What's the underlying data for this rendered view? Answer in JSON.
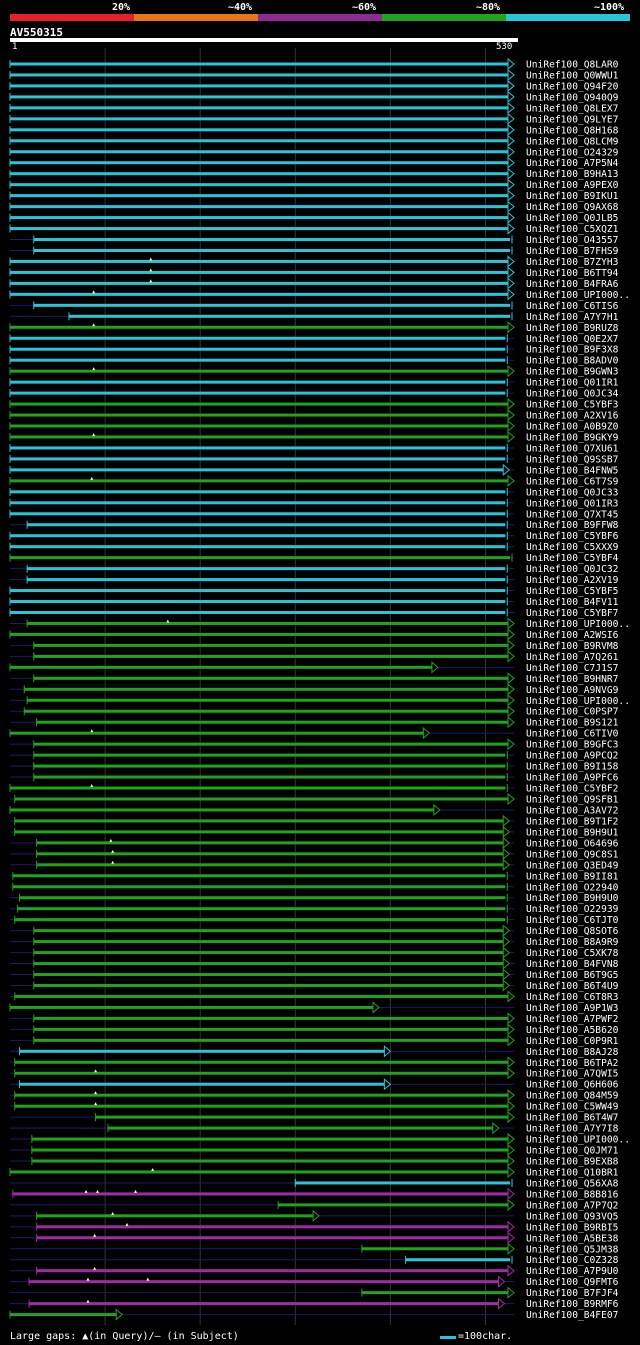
{
  "legend": [
    {
      "label": "20%",
      "color": "#e8202a"
    },
    {
      "label": "~40%",
      "color": "#e8751a"
    },
    {
      "label": "~60%",
      "color": "#8e2a91"
    },
    {
      "label": "~80%",
      "color": "#21a31e"
    },
    {
      "label": "~100%",
      "color": "#29c5d6"
    }
  ],
  "query": {
    "name": "AV550315",
    "start": "1",
    "end": "530"
  },
  "footer": {
    "text": "Large gaps: ▲(in Query)/— (in Subject)",
    "scale": "=100char."
  },
  "colors": {
    "cyan": "#29c5d6",
    "green": "#21a31e",
    "purple": "#a12aa8",
    "gap": "#1a1a6e"
  },
  "chart_data": {
    "type": "alignment-overview",
    "query_length": 530,
    "hits": [
      {
        "name": "UniRef100_Q8LAR0",
        "s": 0,
        "e": 530,
        "c": "cyan",
        "t": "a"
      },
      {
        "name": "UniRef100_Q0WWU1",
        "s": 0,
        "e": 530,
        "c": "cyan",
        "t": "a"
      },
      {
        "name": "UniRef100_Q94F20",
        "s": 0,
        "e": 530,
        "c": "cyan",
        "t": "a"
      },
      {
        "name": "UniRef100_Q940Q9",
        "s": 0,
        "e": 530,
        "c": "cyan",
        "t": "a"
      },
      {
        "name": "UniRef100_Q8LEX7",
        "s": 0,
        "e": 530,
        "c": "cyan",
        "t": "a"
      },
      {
        "name": "UniRef100_Q9LYE7",
        "s": 0,
        "e": 530,
        "c": "cyan",
        "t": "a"
      },
      {
        "name": "UniRef100_Q8H168",
        "s": 0,
        "e": 530,
        "c": "cyan",
        "t": "a"
      },
      {
        "name": "UniRef100_Q8LCM9",
        "s": 0,
        "e": 530,
        "c": "cyan",
        "t": "a"
      },
      {
        "name": "UniRef100_O24329",
        "s": 0,
        "e": 530,
        "c": "cyan",
        "t": "a"
      },
      {
        "name": "UniRef100_A7P5N4",
        "s": 0,
        "e": 530,
        "c": "cyan",
        "t": "a"
      },
      {
        "name": "UniRef100_B9HA13",
        "s": 0,
        "e": 530,
        "c": "cyan",
        "t": "a"
      },
      {
        "name": "UniRef100_A9PEX0",
        "s": 0,
        "e": 530,
        "c": "cyan",
        "t": "a"
      },
      {
        "name": "UniRef100_B9IKU1",
        "s": 0,
        "e": 530,
        "c": "cyan",
        "t": "a"
      },
      {
        "name": "UniRef100_Q9AX68",
        "s": 0,
        "e": 530,
        "c": "cyan",
        "t": "a"
      },
      {
        "name": "UniRef100_Q0JLB5",
        "s": 0,
        "e": 530,
        "c": "cyan",
        "t": "a"
      },
      {
        "name": "UniRef100_C5XQZ1",
        "s": 0,
        "e": 530,
        "c": "cyan",
        "t": "a"
      },
      {
        "name": "UniRef100_O43557",
        "s": 25,
        "e": 530,
        "c": "cyan",
        "t": "b"
      },
      {
        "name": "UniRef100_B7FHS9",
        "s": 25,
        "e": 530,
        "c": "cyan",
        "t": "b"
      },
      {
        "name": "UniRef100_B7ZYH3",
        "s": 0,
        "e": 530,
        "c": "cyan",
        "t": "a",
        "g": [
          148
        ]
      },
      {
        "name": "UniRef100_B6TT94",
        "s": 0,
        "e": 530,
        "c": "cyan",
        "t": "a",
        "g": [
          148
        ]
      },
      {
        "name": "UniRef100_B4FRA6",
        "s": 0,
        "e": 530,
        "c": "cyan",
        "t": "a",
        "g": [
          148
        ]
      },
      {
        "name": "UniRef100_UPI000..",
        "s": 0,
        "e": 530,
        "c": "cyan",
        "t": "a",
        "g": [
          88
        ]
      },
      {
        "name": "UniRef100_C6TIS6",
        "s": 25,
        "e": 530,
        "c": "cyan",
        "t": "b"
      },
      {
        "name": "UniRef100_A7Y7H1",
        "s": 62,
        "e": 530,
        "c": "cyan",
        "t": "b"
      },
      {
        "name": "UniRef100_B9RUZ8",
        "s": 0,
        "e": 530,
        "c": "green",
        "t": "a",
        "g": [
          88
        ]
      },
      {
        "name": "UniRef100_Q0E2X7",
        "s": 0,
        "e": 525,
        "c": "cyan",
        "t": "b"
      },
      {
        "name": "UniRef100_B9F3X8",
        "s": 0,
        "e": 525,
        "c": "cyan",
        "t": "b"
      },
      {
        "name": "UniRef100_B8ADV0",
        "s": 0,
        "e": 525,
        "c": "cyan",
        "t": "b"
      },
      {
        "name": "UniRef100_B9GWN3",
        "s": 0,
        "e": 530,
        "c": "green",
        "t": "a",
        "g": [
          88
        ]
      },
      {
        "name": "UniRef100_Q01IR1",
        "s": 0,
        "e": 525,
        "c": "cyan",
        "t": "b"
      },
      {
        "name": "UniRef100_Q0JC34",
        "s": 0,
        "e": 525,
        "c": "cyan",
        "t": "b"
      },
      {
        "name": "UniRef100_C5YBF3",
        "s": 0,
        "e": 530,
        "c": "green",
        "t": "a"
      },
      {
        "name": "UniRef100_A2XV16",
        "s": 0,
        "e": 530,
        "c": "green",
        "t": "a"
      },
      {
        "name": "UniRef100_A0B9Z0",
        "s": 0,
        "e": 530,
        "c": "green",
        "t": "a"
      },
      {
        "name": "UniRef100_B9GKY9",
        "s": 0,
        "e": 530,
        "c": "green",
        "t": "a",
        "g": [
          88
        ]
      },
      {
        "name": "UniRef100_Q7XU61",
        "s": 0,
        "e": 525,
        "c": "cyan",
        "t": "b"
      },
      {
        "name": "UniRef100_Q9SSB7",
        "s": 0,
        "e": 525,
        "c": "cyan",
        "t": "b"
      },
      {
        "name": "UniRef100_B4FNW5",
        "s": 0,
        "e": 525,
        "c": "cyan",
        "t": "a"
      },
      {
        "name": "UniRef100_C6T7S9",
        "s": 0,
        "e": 530,
        "c": "green",
        "t": "a",
        "g": [
          86
        ]
      },
      {
        "name": "UniRef100_Q0JC33",
        "s": 0,
        "e": 525,
        "c": "cyan",
        "t": "b"
      },
      {
        "name": "UniRef100_Q01IR3",
        "s": 0,
        "e": 525,
        "c": "cyan",
        "t": "b"
      },
      {
        "name": "UniRef100_Q7XT45",
        "s": 0,
        "e": 525,
        "c": "cyan",
        "t": "b"
      },
      {
        "name": "UniRef100_B9FFW8",
        "s": 18,
        "e": 525,
        "c": "cyan",
        "t": "b"
      },
      {
        "name": "UniRef100_C5YBF6",
        "s": 0,
        "e": 525,
        "c": "cyan",
        "t": "b"
      },
      {
        "name": "UniRef100_C5XXX9",
        "s": 0,
        "e": 525,
        "c": "cyan",
        "t": "b"
      },
      {
        "name": "UniRef100_C5YBF4",
        "s": 0,
        "e": 530,
        "c": "green",
        "t": "b"
      },
      {
        "name": "UniRef100_Q0JC32",
        "s": 18,
        "e": 525,
        "c": "cyan",
        "t": "b"
      },
      {
        "name": "UniRef100_A2XV19",
        "s": 18,
        "e": 525,
        "c": "cyan",
        "t": "b"
      },
      {
        "name": "UniRef100_C5YBF5",
        "s": 0,
        "e": 525,
        "c": "cyan",
        "t": "b"
      },
      {
        "name": "UniRef100_B4FV11",
        "s": 0,
        "e": 525,
        "c": "cyan",
        "t": "b"
      },
      {
        "name": "UniRef100_C5YBF7",
        "s": 0,
        "e": 525,
        "c": "cyan",
        "t": "b"
      },
      {
        "name": "UniRef100_UPI000..",
        "s": 18,
        "e": 530,
        "c": "green",
        "t": "a",
        "g": [
          166
        ]
      },
      {
        "name": "UniRef100_A2WSI6",
        "s": 0,
        "e": 530,
        "c": "green",
        "t": "a"
      },
      {
        "name": "UniRef100_B9RVM8",
        "s": 25,
        "e": 530,
        "c": "green",
        "t": "a"
      },
      {
        "name": "UniRef100_A7Q261",
        "s": 25,
        "e": 530,
        "c": "green",
        "t": "a"
      },
      {
        "name": "UniRef100_C7J1S7",
        "s": 0,
        "e": 450,
        "c": "green",
        "t": "a"
      },
      {
        "name": "UniRef100_B9HNR7",
        "s": 25,
        "e": 530,
        "c": "green",
        "t": "a"
      },
      {
        "name": "UniRef100_A9NVG9",
        "s": 15,
        "e": 530,
        "c": "green",
        "t": "a"
      },
      {
        "name": "UniRef100_UPI000..",
        "s": 18,
        "e": 530,
        "c": "green",
        "t": "a"
      },
      {
        "name": "UniRef100_C0PSP7",
        "s": 15,
        "e": 530,
        "c": "green",
        "t": "a"
      },
      {
        "name": "UniRef100_B9S121",
        "s": 28,
        "e": 530,
        "c": "green",
        "t": "a"
      },
      {
        "name": "UniRef100_C6TIV0",
        "s": 0,
        "e": 441,
        "c": "green",
        "t": "a",
        "g": [
          86
        ]
      },
      {
        "name": "UniRef100_B9GFC3",
        "s": 25,
        "e": 530,
        "c": "green",
        "t": "a"
      },
      {
        "name": "UniRef100_A9PCQ2",
        "s": 25,
        "e": 525,
        "c": "green",
        "t": "b"
      },
      {
        "name": "UniRef100_B9I158",
        "s": 25,
        "e": 525,
        "c": "green",
        "t": "b"
      },
      {
        "name": "UniRef100_A9PFC6",
        "s": 25,
        "e": 525,
        "c": "green",
        "t": "b"
      },
      {
        "name": "UniRef100_C5YBF2",
        "s": 0,
        "e": 525,
        "c": "green",
        "t": "b",
        "g": [
          86
        ]
      },
      {
        "name": "UniRef100_Q9SFB1",
        "s": 5,
        "e": 530,
        "c": "green",
        "t": "a"
      },
      {
        "name": "UniRef100_A3AV72",
        "s": 0,
        "e": 452,
        "c": "green",
        "t": "a"
      },
      {
        "name": "UniRef100_B9T1F2",
        "s": 5,
        "e": 525,
        "c": "green",
        "t": "a"
      },
      {
        "name": "UniRef100_B9H9U1",
        "s": 5,
        "e": 525,
        "c": "green",
        "t": "a"
      },
      {
        "name": "UniRef100_O64696",
        "s": 28,
        "e": 525,
        "c": "green",
        "t": "a",
        "g": [
          106
        ]
      },
      {
        "name": "UniRef100_Q9C8S1",
        "s": 28,
        "e": 525,
        "c": "green",
        "t": "a",
        "g": [
          108
        ]
      },
      {
        "name": "UniRef100_Q3ED49",
        "s": 28,
        "e": 525,
        "c": "green",
        "t": "a",
        "g": [
          108
        ]
      },
      {
        "name": "UniRef100_B9II81",
        "s": 3,
        "e": 525,
        "c": "green",
        "t": "b"
      },
      {
        "name": "UniRef100_O22940",
        "s": 3,
        "e": 525,
        "c": "green",
        "t": "b"
      },
      {
        "name": "UniRef100_B9H9U0",
        "s": 10,
        "e": 525,
        "c": "green",
        "t": "b"
      },
      {
        "name": "UniRef100_O22939",
        "s": 8,
        "e": 525,
        "c": "green",
        "t": "b"
      },
      {
        "name": "UniRef100_C6TJT0",
        "s": 5,
        "e": 525,
        "c": "green",
        "t": "b"
      },
      {
        "name": "UniRef100_Q8SOT6",
        "s": 25,
        "e": 525,
        "c": "green",
        "t": "a"
      },
      {
        "name": "UniRef100_B8A9R9",
        "s": 25,
        "e": 525,
        "c": "green",
        "t": "a"
      },
      {
        "name": "UniRef100_C5XK78",
        "s": 25,
        "e": 525,
        "c": "green",
        "t": "a"
      },
      {
        "name": "UniRef100_B4FVN8",
        "s": 25,
        "e": 525,
        "c": "green",
        "t": "a"
      },
      {
        "name": "UniRef100_B6T9G5",
        "s": 25,
        "e": 525,
        "c": "green",
        "t": "a"
      },
      {
        "name": "UniRef100_B6T4U9",
        "s": 25,
        "e": 525,
        "c": "green",
        "t": "a"
      },
      {
        "name": "UniRef100_C6T8R3",
        "s": 5,
        "e": 530,
        "c": "green",
        "t": "a"
      },
      {
        "name": "UniRef100_A9P1W3",
        "s": 0,
        "e": 388,
        "c": "green",
        "t": "a"
      },
      {
        "name": "UniRef100_A7PWF2",
        "s": 25,
        "e": 530,
        "c": "green",
        "t": "a"
      },
      {
        "name": "UniRef100_A5B620",
        "s": 25,
        "e": 530,
        "c": "green",
        "t": "a"
      },
      {
        "name": "UniRef100_C0P9R1",
        "s": 25,
        "e": 530,
        "c": "green",
        "t": "a"
      },
      {
        "name": "UniRef100_B8AJ28",
        "s": 10,
        "e": 400,
        "c": "cyan",
        "t": "a"
      },
      {
        "name": "UniRef100_B6TPA2",
        "s": 5,
        "e": 530,
        "c": "green",
        "t": "a"
      },
      {
        "name": "UniRef100_A7QWI5",
        "s": 5,
        "e": 530,
        "c": "green",
        "t": "a",
        "g": [
          90
        ]
      },
      {
        "name": "UniRef100_Q6H606",
        "s": 10,
        "e": 400,
        "c": "cyan",
        "t": "a"
      },
      {
        "name": "UniRef100_Q84M59",
        "s": 5,
        "e": 530,
        "c": "green",
        "t": "a",
        "g": [
          90
        ]
      },
      {
        "name": "UniRef100_C5WW49",
        "s": 5,
        "e": 530,
        "c": "green",
        "t": "a",
        "g": [
          90
        ]
      },
      {
        "name": "UniRef100_B6T4W7",
        "s": 90,
        "e": 530,
        "c": "green",
        "t": "a"
      },
      {
        "name": "UniRef100_A7Y7I8",
        "s": 103,
        "e": 514,
        "c": "green",
        "t": "a"
      },
      {
        "name": "UniRef100_UPI000..",
        "s": 23,
        "e": 530,
        "c": "green",
        "t": "a"
      },
      {
        "name": "UniRef100_Q0JM71",
        "s": 23,
        "e": 530,
        "c": "green",
        "t": "a"
      },
      {
        "name": "UniRef100_B9EXB8",
        "s": 23,
        "e": 530,
        "c": "green",
        "t": "a"
      },
      {
        "name": "UniRef100_Q10BR1",
        "s": 0,
        "e": 530,
        "c": "green",
        "t": "a",
        "g": [
          150
        ]
      },
      {
        "name": "UniRef100_Q56XA8",
        "s": 300,
        "e": 530,
        "c": "cyan",
        "t": "b"
      },
      {
        "name": "UniRef100_B8B816",
        "s": 3,
        "e": 530,
        "c": "purple",
        "t": "a",
        "g": [
          80,
          92,
          132
        ]
      },
      {
        "name": "UniRef100_A7P7Q2",
        "s": 282,
        "e": 530,
        "c": "green",
        "t": "a"
      },
      {
        "name": "UniRef100_Q93VQ5",
        "s": 28,
        "e": 325,
        "c": "green",
        "t": "a",
        "g": [
          108
        ]
      },
      {
        "name": "UniRef100_B9RBI5",
        "s": 28,
        "e": 530,
        "c": "purple",
        "t": "a",
        "g": [
          123
        ]
      },
      {
        "name": "UniRef100_A5BE38",
        "s": 28,
        "e": 530,
        "c": "purple",
        "t": "a",
        "g": [
          89
        ]
      },
      {
        "name": "UniRef100_Q5JM38",
        "s": 370,
        "e": 530,
        "c": "green",
        "t": "a"
      },
      {
        "name": "UniRef100_C0Z328",
        "s": 416,
        "e": 530,
        "c": "cyan",
        "t": "b"
      },
      {
        "name": "UniRef100_A7P9U0",
        "s": 28,
        "e": 530,
        "c": "purple",
        "t": "a",
        "g": [
          89
        ]
      },
      {
        "name": "UniRef100_Q9FMT6",
        "s": 20,
        "e": 520,
        "c": "purple",
        "t": "a",
        "g": [
          82,
          145
        ]
      },
      {
        "name": "UniRef100_B7FJF4",
        "s": 370,
        "e": 530,
        "c": "green",
        "t": "a"
      },
      {
        "name": "UniRef100_B9RMF6",
        "s": 20,
        "e": 520,
        "c": "purple",
        "t": "a",
        "g": [
          82
        ]
      },
      {
        "name": "UniRef100_B4FE07",
        "s": 0,
        "e": 118,
        "c": "green",
        "t": "a"
      }
    ]
  }
}
